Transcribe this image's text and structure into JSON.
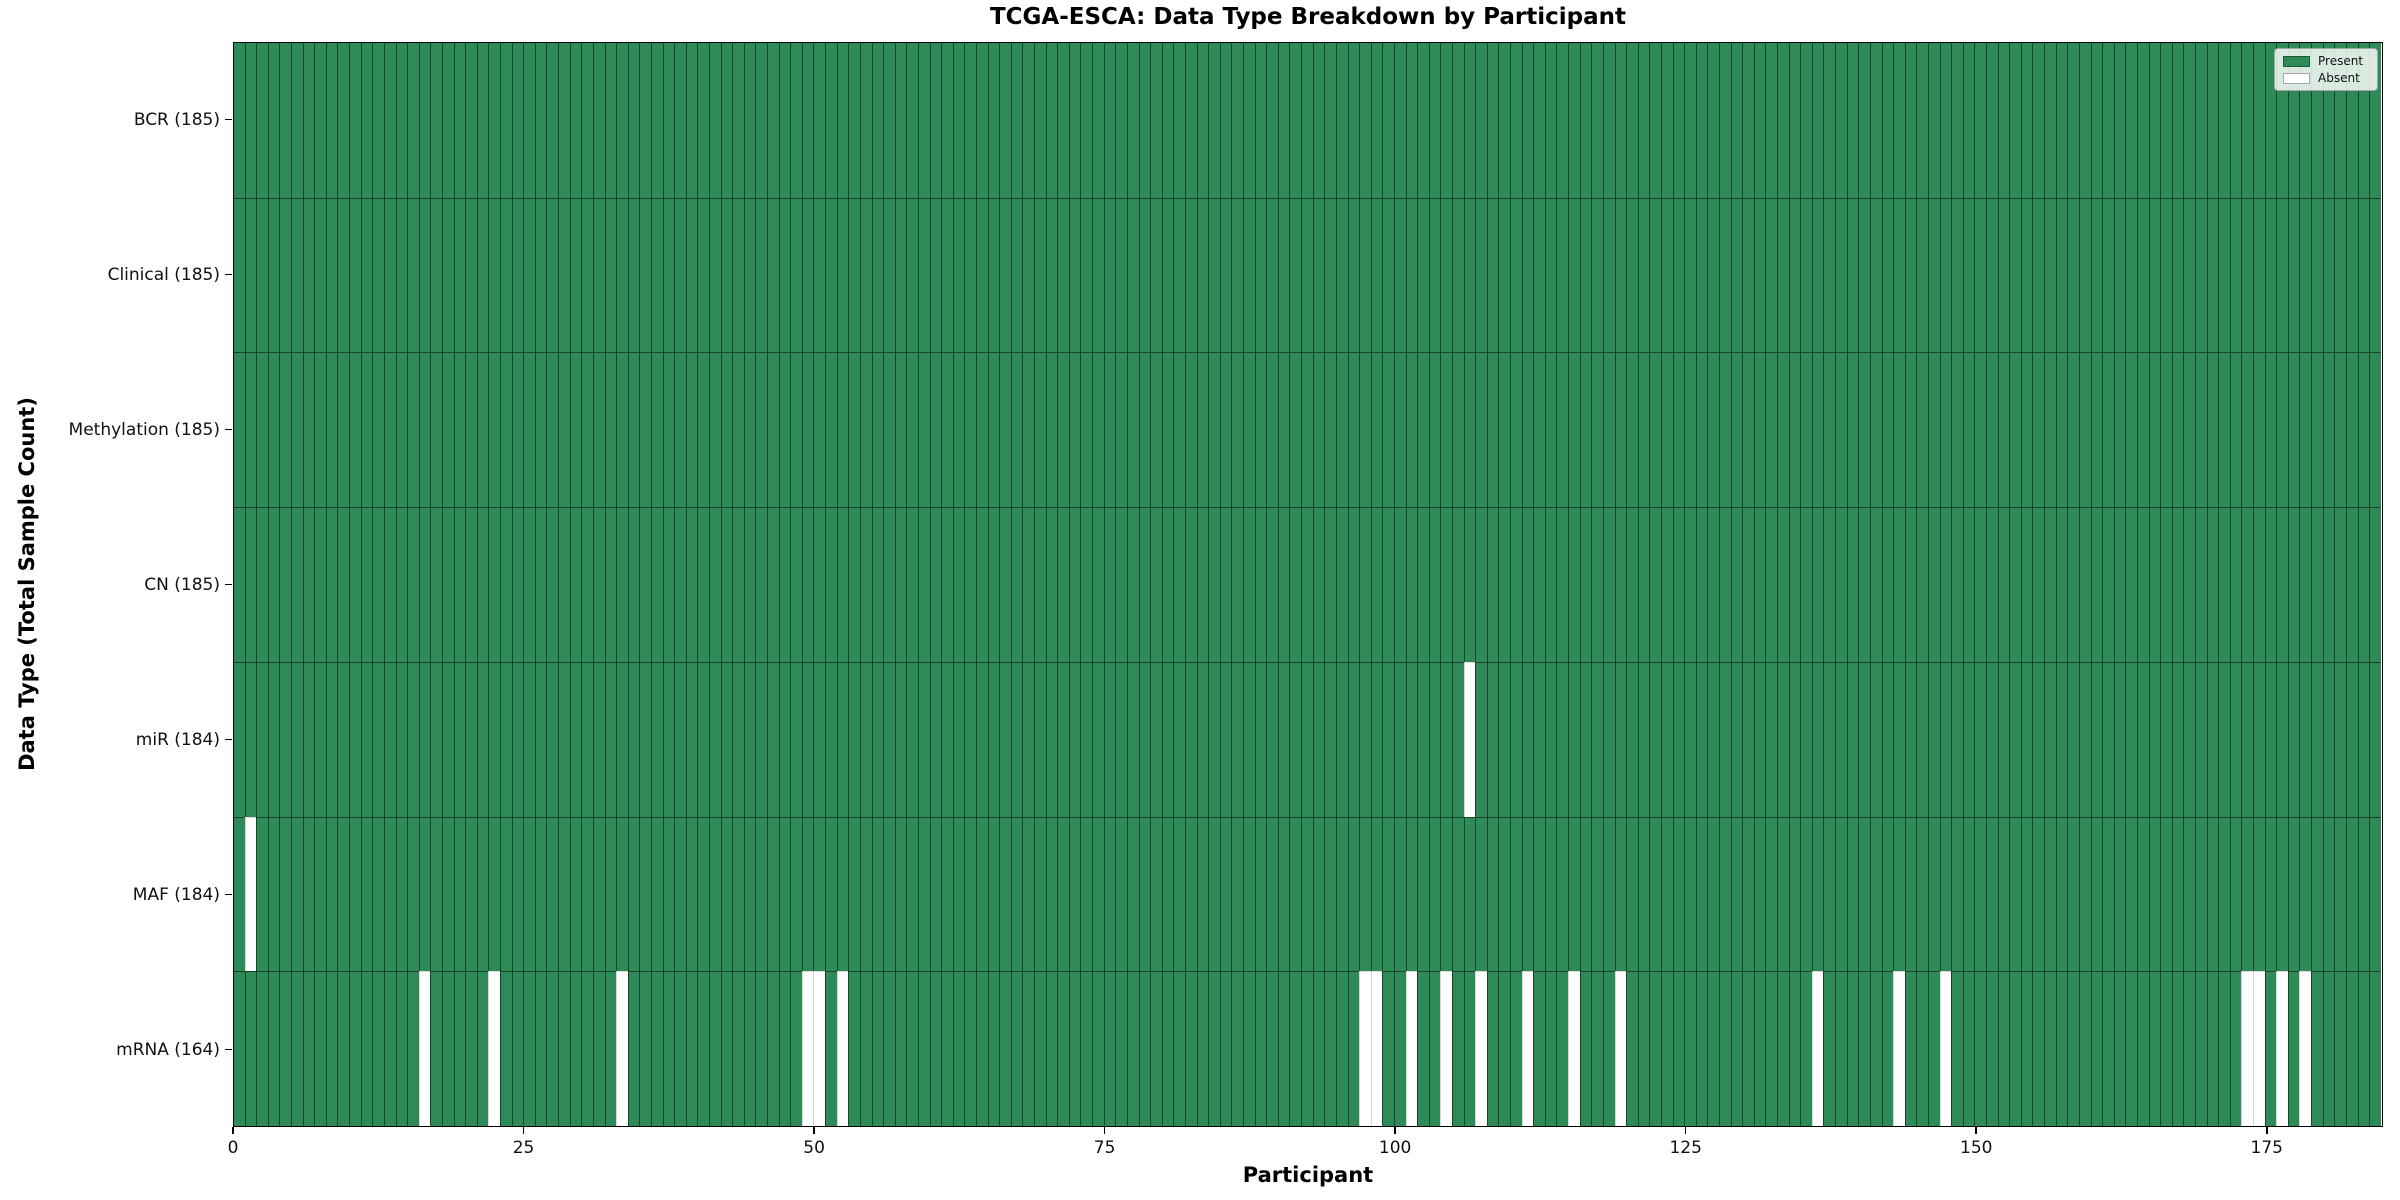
{
  "title": "TCGA-ESCA: Data Type Breakdown by Participant",
  "chart_data": {
    "type": "heatmap",
    "title": "TCGA-ESCA: Data Type Breakdown by Participant",
    "xlabel": "Participant",
    "ylabel": "Data Type (Total Sample Count)",
    "n_participants": 185,
    "x_ticks": [
      0,
      25,
      50,
      75,
      100,
      125,
      150,
      175
    ],
    "x_range": [
      0,
      185
    ],
    "grid": "cell-edges",
    "cell_states": {
      "present": 1,
      "absent": 0
    },
    "rows": [
      {
        "label": "BCR (185)",
        "data_type": "BCR",
        "total_samples": 185,
        "absent_participants": []
      },
      {
        "label": "Clinical (185)",
        "data_type": "Clinical",
        "total_samples": 185,
        "absent_participants": []
      },
      {
        "label": "Methylation (185)",
        "data_type": "Methylation",
        "total_samples": 185,
        "absent_participants": []
      },
      {
        "label": "CN (185)",
        "data_type": "CN",
        "total_samples": 185,
        "absent_participants": []
      },
      {
        "label": "miR (184)",
        "data_type": "miR",
        "total_samples": 184,
        "absent_participants": [
          107
        ]
      },
      {
        "label": "MAF (184)",
        "data_type": "MAF",
        "total_samples": 184,
        "absent_participants": [
          2
        ]
      },
      {
        "label": "mRNA (164)",
        "data_type": "mRNA",
        "total_samples": 164,
        "absent_participants": [
          17,
          23,
          34,
          50,
          51,
          53,
          98,
          99,
          102,
          105,
          108,
          112,
          116,
          120,
          137,
          144,
          148,
          174,
          175,
          177,
          179
        ]
      }
    ],
    "legend": {
      "position": "upper right",
      "entries": [
        {
          "label": "Present",
          "color": "#2E8B57"
        },
        {
          "label": "Absent",
          "color": "#FFFFFF"
        }
      ]
    },
    "colors": {
      "present_fill": "#2E8B57",
      "absent_fill": "#FFFFFF",
      "present_edge": "rgba(0,0,0,0.5)",
      "absent_edge": "rgba(0,0,0,0.15)",
      "spine": "#000000"
    }
  }
}
